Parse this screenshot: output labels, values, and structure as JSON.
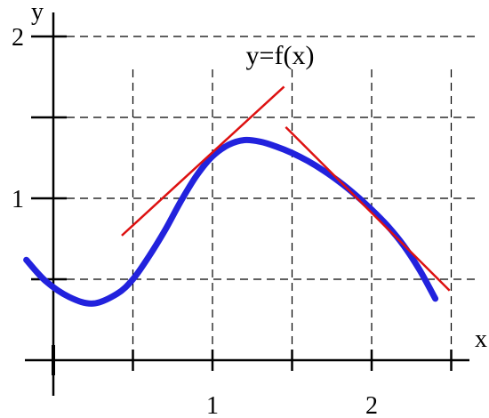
{
  "chart_data": {
    "type": "line",
    "title": "y=f(x)",
    "xlabel": "x",
    "ylabel": "y",
    "xlim": [
      -0.15,
      2.65
    ],
    "ylim": [
      -0.05,
      2.05
    ],
    "x_ticks": [
      {
        "value": 0.5,
        "label": ""
      },
      {
        "value": 1,
        "label": "1"
      },
      {
        "value": 1.5,
        "label": ""
      },
      {
        "value": 2,
        "label": "2"
      },
      {
        "value": 2.5,
        "label": ""
      }
    ],
    "y_ticks": [
      {
        "value": 0.5,
        "label": ""
      },
      {
        "value": 1,
        "label": "1"
      },
      {
        "value": 1.5,
        "label": ""
      },
      {
        "value": 2,
        "label": "2"
      }
    ],
    "grid": true,
    "curve": {
      "color": "#2222dd",
      "x": [
        -0.17,
        -0.05,
        0.1,
        0.25,
        0.4,
        0.5,
        0.6,
        0.7,
        0.8,
        0.9,
        1.0,
        1.1,
        1.2,
        1.3,
        1.4,
        1.5,
        1.6,
        1.7,
        1.8,
        1.9,
        2.0,
        2.1,
        2.2,
        2.3,
        2.4
      ],
      "y": [
        0.62,
        0.49,
        0.39,
        0.35,
        0.41,
        0.5,
        0.64,
        0.8,
        0.98,
        1.14,
        1.26,
        1.33,
        1.36,
        1.35,
        1.32,
        1.28,
        1.23,
        1.17,
        1.1,
        1.02,
        0.93,
        0.83,
        0.71,
        0.56,
        0.38
      ]
    },
    "tangents": [
      {
        "color": "#dd1111",
        "x": [
          0.43,
          1.45
        ],
        "y": [
          0.77,
          1.69
        ]
      },
      {
        "color": "#dd1111",
        "x": [
          1.46,
          2.49
        ],
        "y": [
          1.44,
          0.43
        ]
      }
    ]
  }
}
